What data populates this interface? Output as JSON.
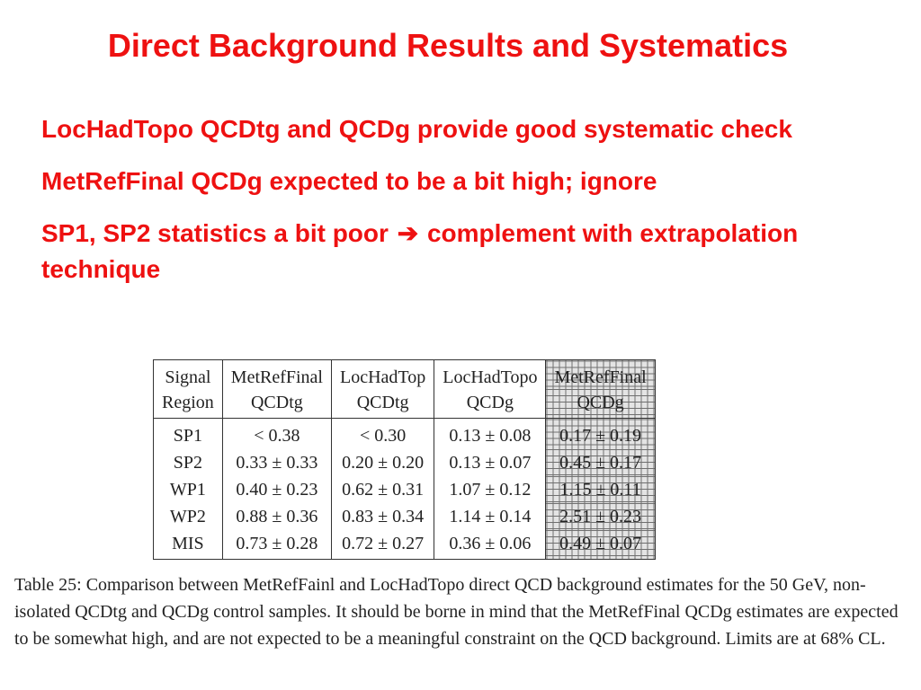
{
  "slide": {
    "title": "Direct Background Results and Systematics"
  },
  "bullets": [
    {
      "text": "LocHadTopo QCDtg and QCDg provide good systematic check"
    },
    {
      "text": "MetRefFinal QCDg expected to be a bit high; ignore"
    },
    {
      "text_before": "SP1, SP2 statistics a bit poor",
      "arrow": "➔",
      "text_after": "complement with extrapolation technique",
      "arrow_icon": "right-arrow-icon"
    }
  ],
  "table": {
    "header_row1": [
      "Signal",
      "MetRefFinal",
      "LocHadTop",
      "LocHadTopo",
      "MetRefFinal"
    ],
    "header_row2": [
      "Region",
      "QCDtg",
      "QCDtg",
      "QCDg",
      "QCDg"
    ],
    "rows": [
      [
        "SP1",
        "< 0.38",
        "< 0.30",
        "0.13 ± 0.08",
        "0.17 ± 0.19"
      ],
      [
        "SP2",
        "0.33 ± 0.33",
        "0.20 ± 0.20",
        "0.13 ± 0.07",
        "0.45 ± 0.17"
      ],
      [
        "WP1",
        "0.40 ± 0.23",
        "0.62 ± 0.31",
        "1.07 ± 0.12",
        "1.15 ± 0.11"
      ],
      [
        "WP2",
        "0.88 ± 0.36",
        "0.83 ± 0.34",
        "1.14 ± 0.14",
        "2.51 ± 0.23"
      ],
      [
        "MIS",
        "0.73 ± 0.28",
        "0.72 ± 0.27",
        "0.36 ± 0.06",
        "0.49 ± 0.07"
      ]
    ]
  },
  "caption": "Table 25: Comparison between MetRefFainl and LocHadTopo direct QCD background estimates for the 50 GeV, non-isolated QCDtg and QCDg control samples. It should be borne in mind that the MetRefFinal QCDg estimates are expected to be somewhat high, and are not expected to be a meaningful constraint on the QCD background. Limits are at 68% CL.",
  "colors": {
    "title": "#ee1111",
    "bullets": "#ee1111",
    "highlight_grid": "#6f6f6f"
  }
}
